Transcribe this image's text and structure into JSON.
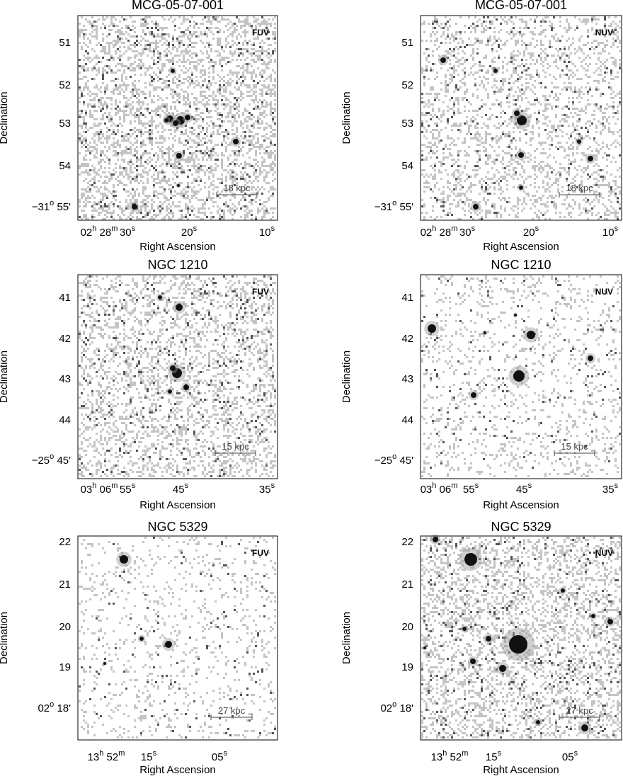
{
  "panels": [
    {
      "title": "MCG-05-07-001",
      "band": "FUV",
      "scale": "18 kpc",
      "y_label": "Declination",
      "x_label": "Right Ascension",
      "y_ticks": [
        "51",
        "52",
        "53",
        "54",
        [
          "−31",
          "o",
          " 55'"
        ]
      ],
      "x_ticks": [
        [
          "02",
          "h",
          " 28",
          "m"
        ],
        [
          "30",
          "s"
        ],
        [
          "20",
          "s"
        ],
        [
          "10",
          "s"
        ]
      ]
    },
    {
      "title": "MCG-05-07-001",
      "band": "NUV",
      "scale": "18 kpc",
      "y_label": "Declination",
      "x_label": "Right Ascension",
      "y_ticks": [
        "51",
        "52",
        "53",
        "54",
        [
          "−31",
          "o",
          " 55'"
        ]
      ],
      "x_ticks": [
        [
          "02",
          "h",
          " 28",
          "m"
        ],
        [
          "30",
          "s"
        ],
        [
          "20",
          "s"
        ],
        [
          "10",
          "s"
        ]
      ]
    },
    {
      "title": "NGC 1210",
      "band": "FUV",
      "scale": "15 kpc",
      "y_label": "Declination",
      "x_label": "Right Ascension",
      "y_ticks": [
        "41",
        "42",
        "43",
        "44",
        [
          "−25",
          "o",
          " 45'"
        ]
      ],
      "x_ticks": [
        [
          "03",
          "h",
          " 06",
          "m"
        ],
        [
          "55",
          "s"
        ],
        [
          "45",
          "s"
        ],
        [
          "35",
          "s"
        ]
      ]
    },
    {
      "title": "NGC 1210",
      "band": "NUV",
      "scale": "15 kpc",
      "y_label": "Declination",
      "x_label": "Right Ascension",
      "y_ticks": [
        "41",
        "42",
        "43",
        "44",
        [
          "−25",
          "o",
          " 45'"
        ]
      ],
      "x_ticks": [
        [
          "03",
          "h",
          " 06",
          "m"
        ],
        [
          "55",
          "s"
        ],
        [
          "45",
          "s"
        ],
        [
          "35",
          "s"
        ]
      ]
    },
    {
      "title": "NGC 5329",
      "band": "FUV",
      "scale": "27 kpc",
      "y_label": "Declination",
      "x_label": "Right Ascension",
      "y_ticks": [
        "22",
        "21",
        "20",
        "19",
        [
          "02",
          "o",
          " 18'"
        ]
      ],
      "x_ticks": [
        [
          "13",
          "h",
          " 52",
          "m"
        ],
        [
          "15",
          "s"
        ],
        [
          "05",
          "s"
        ]
      ]
    },
    {
      "title": "NGC 5329",
      "band": "NUV",
      "scale": "27 kpc",
      "y_label": "Declination",
      "x_label": "Right Ascension",
      "y_ticks": [
        "22",
        "21",
        "20",
        "19",
        [
          "02",
          "o",
          " 18'"
        ]
      ],
      "x_ticks": [
        [
          "13",
          "h",
          " 52",
          "m"
        ],
        [
          "15",
          "s"
        ],
        [
          "05",
          "s"
        ]
      ]
    }
  ]
}
